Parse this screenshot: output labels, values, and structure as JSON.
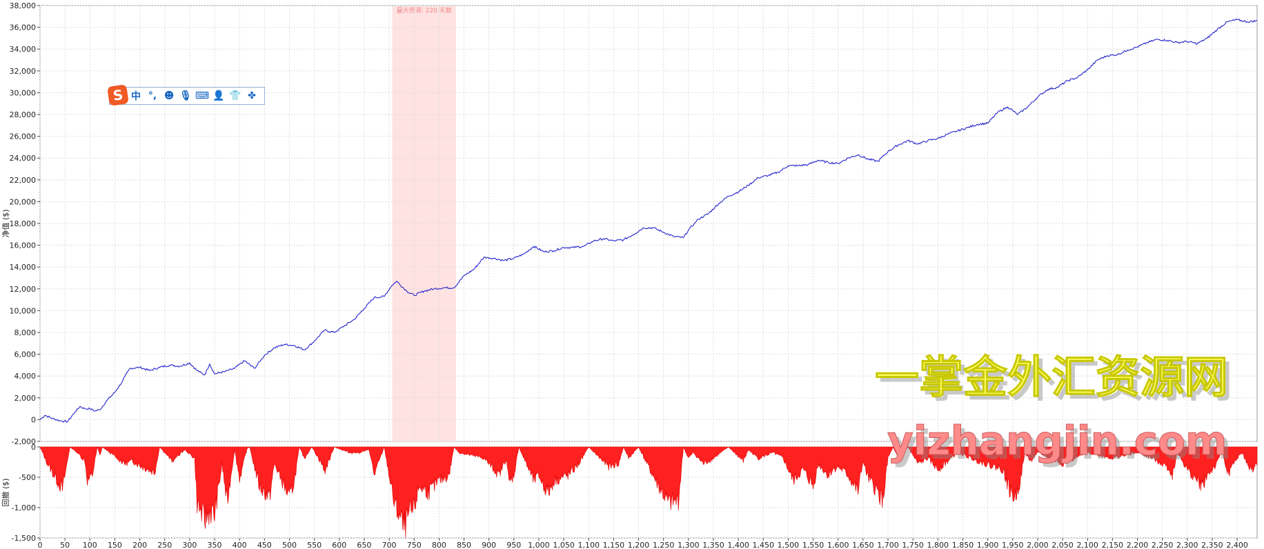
{
  "chart_data": [
    {
      "type": "line",
      "ylabel": "净值 ($)",
      "ylim": [
        -2000,
        38000
      ],
      "yticks": [
        -2000,
        0,
        2000,
        4000,
        6000,
        8000,
        10000,
        12000,
        14000,
        16000,
        18000,
        20000,
        22000,
        24000,
        26000,
        28000,
        30000,
        32000,
        34000,
        36000,
        38000
      ],
      "xlim": [
        0,
        2440
      ],
      "grid": true,
      "series": [
        {
          "color": "#2222cc",
          "x": [
            0,
            10,
            25,
            40,
            55,
            70,
            80,
            90,
            100,
            110,
            120,
            135,
            150,
            165,
            180,
            200,
            220,
            240,
            260,
            280,
            300,
            315,
            330,
            340,
            350,
            370,
            390,
            410,
            430,
            450,
            470,
            490,
            510,
            530,
            550,
            570,
            590,
            610,
            630,
            650,
            670,
            690,
            705,
            715,
            735,
            750,
            770,
            790,
            810,
            830,
            850,
            870,
            890,
            910,
            930,
            950,
            970,
            990,
            1010,
            1030,
            1050,
            1070,
            1090,
            1110,
            1130,
            1150,
            1170,
            1190,
            1210,
            1230,
            1250,
            1270,
            1290,
            1300,
            1320,
            1340,
            1360,
            1380,
            1400,
            1420,
            1440,
            1460,
            1480,
            1500,
            1520,
            1540,
            1560,
            1580,
            1600,
            1620,
            1640,
            1660,
            1680,
            1700,
            1720,
            1740,
            1760,
            1780,
            1800,
            1820,
            1840,
            1860,
            1880,
            1900,
            1920,
            1940,
            1960,
            1980,
            2000,
            2020,
            2040,
            2060,
            2080,
            2100,
            2120,
            2140,
            2160,
            2180,
            2200,
            2220,
            2240,
            2260,
            2280,
            2300,
            2320,
            2340,
            2360,
            2380,
            2400,
            2420,
            2440
          ],
          "y": [
            0,
            400,
            100,
            -100,
            -200,
            700,
            1200,
            1000,
            1000,
            800,
            900,
            1800,
            2500,
            3500,
            4700,
            4800,
            4500,
            4800,
            5000,
            4900,
            5200,
            4500,
            4100,
            5100,
            4200,
            4400,
            4700,
            5400,
            4700,
            5900,
            6600,
            6900,
            6800,
            6400,
            7200,
            8200,
            8000,
            8600,
            9200,
            10200,
            11200,
            11300,
            12300,
            12700,
            11800,
            11400,
            11800,
            12000,
            12100,
            12100,
            13200,
            13800,
            14900,
            14800,
            14600,
            14800,
            15200,
            15900,
            15400,
            15500,
            15800,
            15800,
            15900,
            16400,
            16600,
            16400,
            16500,
            17000,
            17600,
            17600,
            17200,
            16800,
            16700,
            17400,
            18400,
            18900,
            19800,
            20500,
            20900,
            21500,
            22200,
            22400,
            22700,
            23300,
            23300,
            23400,
            23800,
            23600,
            23500,
            24000,
            24300,
            23900,
            23700,
            24600,
            25200,
            25600,
            25300,
            25600,
            25800,
            26200,
            26500,
            26800,
            27100,
            27200,
            28200,
            28700,
            28000,
            28700,
            29600,
            30300,
            30500,
            31100,
            31400,
            32100,
            33000,
            33400,
            33500,
            33900,
            34200,
            34600,
            34900,
            34800,
            34600,
            34700,
            34500,
            35000,
            35800,
            36500,
            36700,
            36500,
            36600
          ]
        }
      ],
      "annotations": [
        {
          "text": "最大停滞: 220 天数",
          "x_start": 706,
          "x_end": 834
        }
      ]
    },
    {
      "type": "area",
      "ylabel": "回撤 ($)",
      "ylim": [
        -1500,
        0
      ],
      "yticks": [
        0,
        -500,
        -1000,
        -1500
      ],
      "xlim": [
        0,
        2440
      ],
      "xticks": [
        0,
        50,
        100,
        150,
        200,
        250,
        300,
        350,
        400,
        450,
        500,
        550,
        600,
        650,
        700,
        750,
        800,
        850,
        900,
        950,
        1000,
        1050,
        1100,
        1150,
        1200,
        1250,
        1300,
        1350,
        1400,
        1450,
        1500,
        1550,
        1600,
        1650,
        1700,
        1750,
        1800,
        1850,
        1900,
        1950,
        2000,
        2050,
        2100,
        2150,
        2200,
        2250,
        2300,
        2350,
        2400
      ],
      "xticklabels": [
        "0",
        "50",
        "100",
        "150",
        "200",
        "250",
        "300",
        "350",
        "400",
        "450",
        "500",
        "550",
        "600",
        "650",
        "700",
        "750",
        "800",
        "850",
        "900",
        "950",
        "1,000",
        "1,050",
        "1,100",
        "1,150",
        "1,200",
        "1,250",
        "1,300",
        "1,350",
        "1,400",
        "1,450",
        "1,500",
        "1,550",
        "1,600",
        "1,650",
        "1,700",
        "1,750",
        "1,800",
        "1,850",
        "1,900",
        "1,950",
        "2,000",
        "2,050",
        "2,100",
        "2,150",
        "2,200",
        "2,250",
        "2,300",
        "2,350",
        "2,400"
      ],
      "grid": true,
      "series": [
        {
          "color": "#ff2020",
          "x": [
            0,
            15,
            45,
            60,
            75,
            90,
            95,
            105,
            115,
            120,
            125,
            170,
            185,
            205,
            230,
            240,
            265,
            290,
            310,
            315,
            330,
            340,
            350,
            365,
            375,
            390,
            400,
            405,
            415,
            420,
            440,
            460,
            470,
            480,
            500,
            510,
            520,
            530,
            545,
            565,
            570,
            590,
            620,
            640,
            660,
            670,
            690,
            710,
            720,
            730,
            740,
            750,
            760,
            780,
            800,
            820,
            830,
            840,
            890,
            920,
            935,
            940,
            950,
            960,
            990,
            1000,
            1010,
            1020,
            1030,
            1060,
            1070,
            1080,
            1100,
            1140,
            1160,
            1170,
            1180,
            1200,
            1240,
            1260,
            1280,
            1290,
            1300,
            1310,
            1330,
            1350,
            1380,
            1410,
            1420,
            1440,
            1470,
            1490,
            1510,
            1530,
            1550,
            1560,
            1580,
            1590,
            1600,
            1620,
            1640,
            1650,
            1660,
            1690,
            1700,
            1710,
            1720,
            1740,
            1760,
            1780,
            1800,
            1840,
            1880,
            1930,
            1945,
            1955,
            1965,
            1975,
            1985,
            2000,
            2050,
            2100,
            2150,
            2200,
            2230,
            2260,
            2270,
            2280,
            2300,
            2320,
            2330,
            2340,
            2360,
            2370,
            2380,
            2400,
            2410,
            2420,
            2430,
            2440
          ],
          "y": [
            0,
            -300,
            -750,
            0,
            -100,
            -250,
            -600,
            -500,
            0,
            -150,
            0,
            -300,
            -250,
            -350,
            -450,
            0,
            -250,
            -50,
            -200,
            -1000,
            -1300,
            -1150,
            -1200,
            -300,
            -1000,
            -50,
            -550,
            -400,
            -30,
            0,
            -700,
            -900,
            -300,
            -500,
            -900,
            -600,
            0,
            -200,
            0,
            -300,
            -450,
            0,
            -100,
            -100,
            -50,
            -500,
            0,
            -1000,
            -1200,
            -1450,
            -1200,
            -1100,
            -700,
            -800,
            -600,
            -500,
            0,
            -100,
            -200,
            -500,
            -200,
            -650,
            -500,
            0,
            -600,
            -500,
            -700,
            -800,
            -600,
            -500,
            -400,
            -300,
            0,
            -350,
            -300,
            0,
            -200,
            0,
            -700,
            -1000,
            -950,
            0,
            -200,
            -100,
            -300,
            -200,
            0,
            -250,
            -50,
            -200,
            -100,
            -200,
            -600,
            -400,
            -700,
            -300,
            -500,
            -400,
            -350,
            -500,
            -800,
            -250,
            -550,
            -950,
            -200,
            0,
            -200,
            0,
            -300,
            -200,
            -400,
            -100,
            -250,
            -400,
            -800,
            -900,
            -600,
            -100,
            -250,
            -100,
            -300,
            -100,
            -200,
            -100,
            -200,
            -350,
            -500,
            -100,
            -400,
            -600,
            -700,
            -500,
            -300,
            0,
            -500,
            -200,
            -100,
            -300,
            -400,
            -300
          ]
        }
      ]
    }
  ],
  "watermark": {
    "line1": "一掌金外汇资源网",
    "line2": "yizhangjin.com"
  },
  "ime_toolbar": {
    "logo": "S",
    "items": [
      {
        "icon": "chinese-mode-icon",
        "glyph": "中"
      },
      {
        "icon": "punctuation-icon",
        "glyph": "°,"
      },
      {
        "icon": "emoji-icon",
        "glyph": "☻"
      },
      {
        "icon": "microphone-icon",
        "glyph": "🎙"
      },
      {
        "icon": "keyboard-icon",
        "glyph": "⌨"
      },
      {
        "icon": "user-icon",
        "glyph": "👤"
      },
      {
        "icon": "skin-icon",
        "glyph": "👕"
      },
      {
        "icon": "toolbox-icon",
        "glyph": "✤"
      }
    ]
  }
}
